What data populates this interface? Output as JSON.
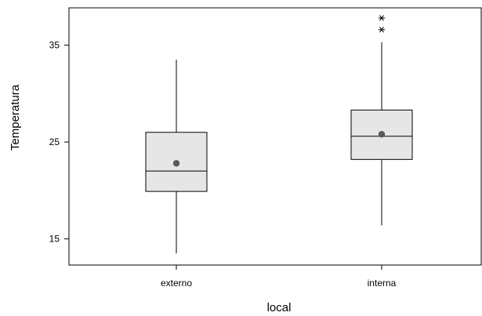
{
  "chart_data": {
    "type": "boxplot",
    "title": "",
    "xlabel": "local",
    "ylabel": "Temperatura",
    "ylim": [
      12.3,
      38.85
    ],
    "yticks": [
      15,
      25,
      35
    ],
    "grid": false,
    "legend": "none",
    "colors": {
      "box_fill": "#e6e6e6",
      "stroke": "#000000",
      "mean": "#595959"
    },
    "categories": [
      "externo",
      "interna"
    ],
    "boxes": [
      {
        "category": "externo",
        "whisker_low": 13.5,
        "q1": 19.9,
        "median": 22.0,
        "q3": 26.0,
        "whisker_high": 33.5,
        "mean": 22.8,
        "outliers": []
      },
      {
        "category": "interna",
        "whisker_low": 16.4,
        "q1": 23.2,
        "median": 25.6,
        "q3": 28.3,
        "whisker_high": 35.3,
        "mean": 25.8,
        "outliers": [
          36.6,
          37.8
        ]
      }
    ]
  }
}
